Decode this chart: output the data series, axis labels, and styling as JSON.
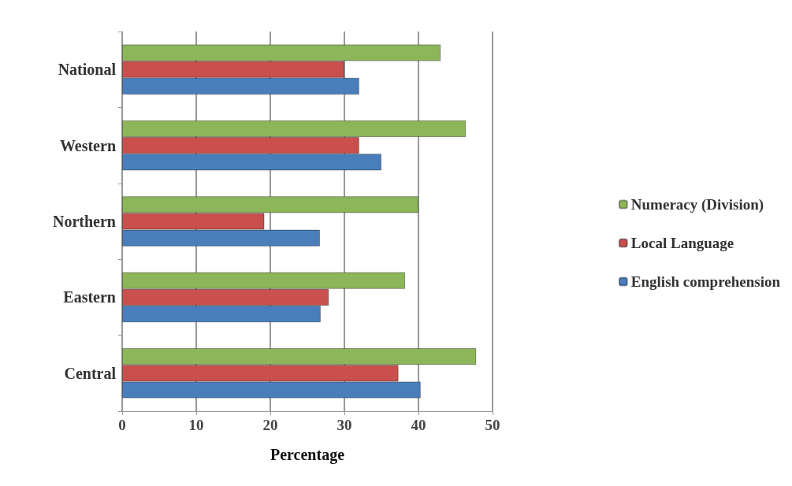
{
  "chart_data": {
    "type": "bar",
    "orientation": "horizontal",
    "xlabel": "Percentage",
    "categories": [
      "National",
      "Western",
      "Northern",
      "Eastern",
      "Central"
    ],
    "series": [
      {
        "name": "Numeracy (Division)",
        "color": "#8db65a",
        "values": [
          43,
          46.4,
          40,
          38.2,
          47.8
        ]
      },
      {
        "name": "Local Language",
        "color": "#c9504c",
        "values": [
          30,
          32,
          19.2,
          27.9,
          37.3
        ]
      },
      {
        "name": "English comprehension",
        "color": "#4a7ebb",
        "values": [
          32,
          35,
          26.7,
          26.8,
          40.3
        ]
      }
    ],
    "xlim": [
      0,
      50
    ],
    "xticks": [
      0,
      10,
      20,
      30,
      40,
      50
    ],
    "grid": "x",
    "legend": "right"
  }
}
